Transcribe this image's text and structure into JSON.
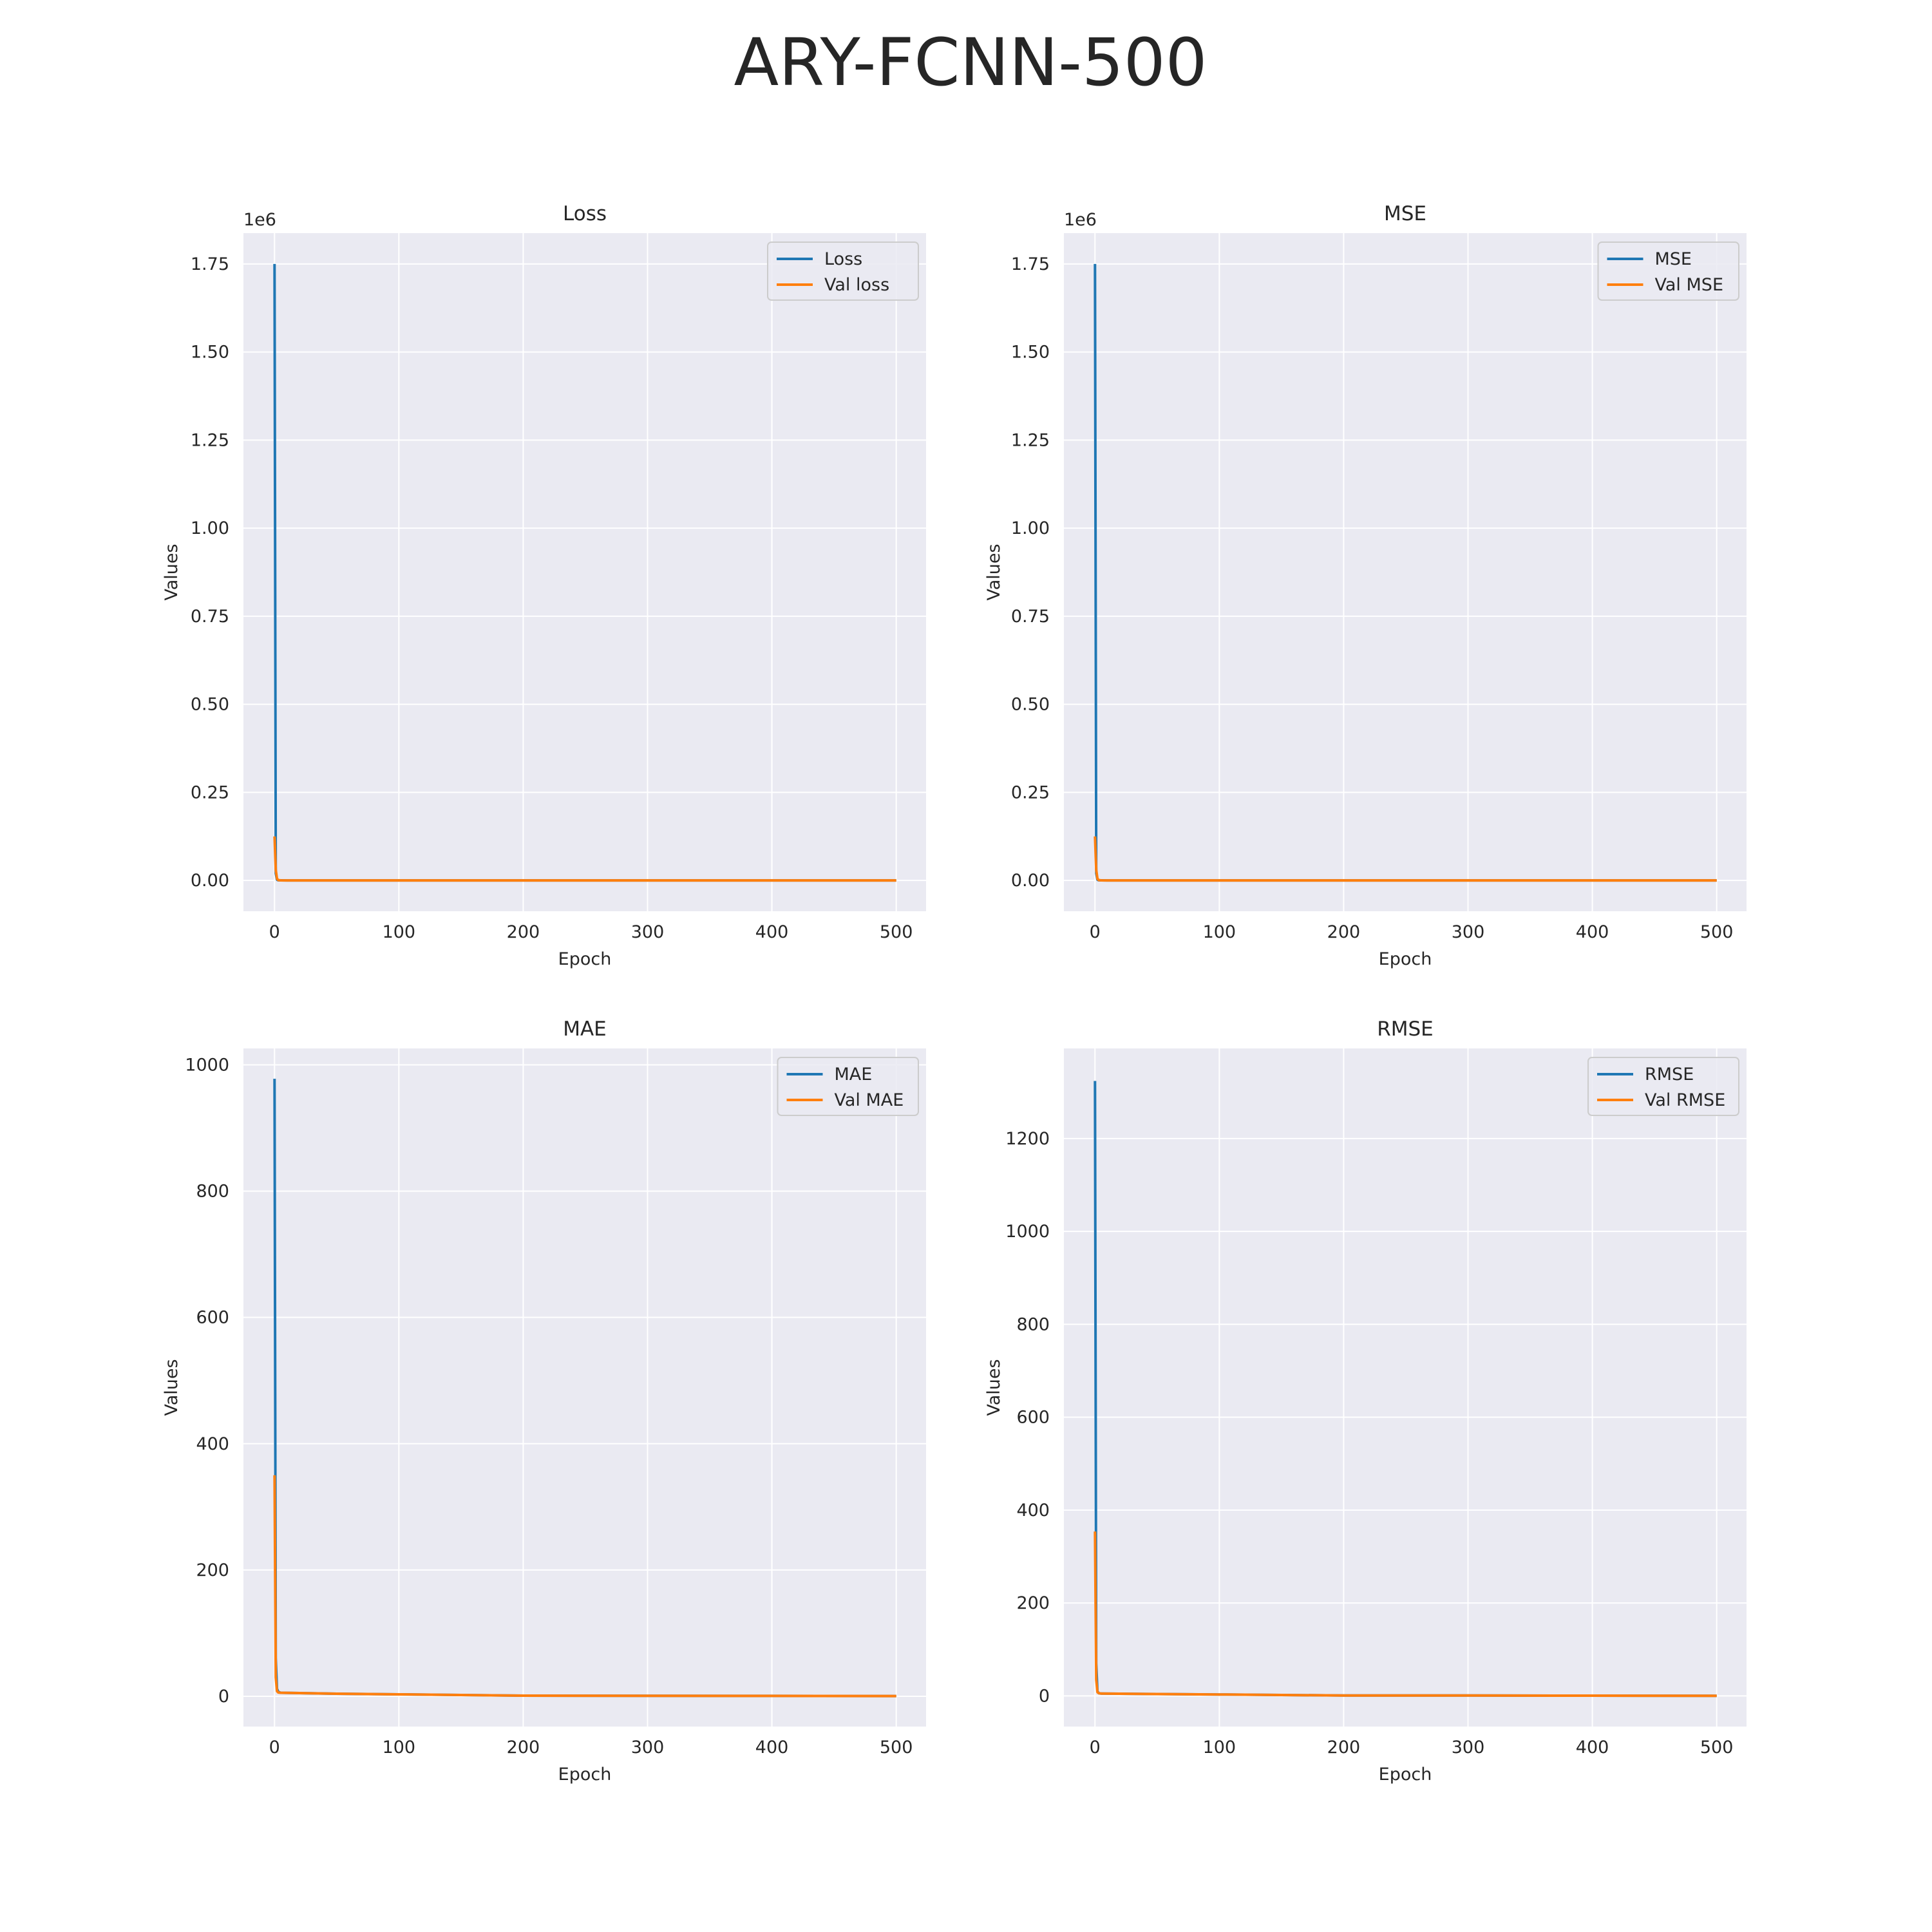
{
  "figure": {
    "suptitle": "ARY-FCNN-500"
  },
  "colors": {
    "axes_bg": "#EAEAF2",
    "grid": "#FFFFFF",
    "train": "#1F77B4",
    "val": "#FF7F0E",
    "text": "#262626"
  },
  "chart_data": [
    {
      "type": "line",
      "title": "Loss",
      "xlabel": "Epoch",
      "ylabel": "Values",
      "offset_text": "1e6",
      "xlim": [
        -25,
        524
      ],
      "ylim": [
        -0.0875,
        1.8375
      ],
      "xticks": [
        0,
        100,
        200,
        300,
        400,
        500
      ],
      "xtick_labels": [
        "0",
        "100",
        "200",
        "300",
        "400",
        "500"
      ],
      "yticks": [
        0,
        0.25,
        0.5,
        0.75,
        1.0,
        1.25,
        1.5,
        1.75
      ],
      "ytick_labels": [
        "0.00",
        "0.25",
        "0.50",
        "0.75",
        "1.00",
        "1.25",
        "1.50",
        "1.75"
      ],
      "grid": true,
      "legend_position": "top-right",
      "series": [
        {
          "name": "Loss",
          "color": "#1F77B4",
          "x": [
            0,
            1,
            2,
            3,
            5,
            10,
            100,
            500
          ],
          "y": [
            1.75,
            0.02,
            0.002,
            0.0005,
            0.0002,
            0.0001,
            0.0,
            0.0
          ]
        },
        {
          "name": "Val loss",
          "color": "#FF7F0E",
          "x": [
            0,
            1,
            2,
            3,
            5,
            10,
            100,
            500
          ],
          "y": [
            0.125,
            0.03,
            0.005,
            0.001,
            0.0003,
            0.0001,
            0.0,
            0.0
          ]
        }
      ]
    },
    {
      "type": "line",
      "title": "MSE",
      "xlabel": "Epoch",
      "ylabel": "Values",
      "offset_text": "1e6",
      "xlim": [
        -25,
        524
      ],
      "ylim": [
        -0.0875,
        1.8375
      ],
      "xticks": [
        0,
        100,
        200,
        300,
        400,
        500
      ],
      "xtick_labels": [
        "0",
        "100",
        "200",
        "300",
        "400",
        "500"
      ],
      "yticks": [
        0,
        0.25,
        0.5,
        0.75,
        1.0,
        1.25,
        1.5,
        1.75
      ],
      "ytick_labels": [
        "0.00",
        "0.25",
        "0.50",
        "0.75",
        "1.00",
        "1.25",
        "1.50",
        "1.75"
      ],
      "grid": true,
      "legend_position": "top-right",
      "series": [
        {
          "name": "MSE",
          "color": "#1F77B4",
          "x": [
            0,
            1,
            2,
            3,
            5,
            10,
            100,
            500
          ],
          "y": [
            1.75,
            0.02,
            0.002,
            0.0005,
            0.0002,
            0.0001,
            0.0,
            0.0
          ]
        },
        {
          "name": "Val MSE",
          "color": "#FF7F0E",
          "x": [
            0,
            1,
            2,
            3,
            5,
            10,
            100,
            500
          ],
          "y": [
            0.125,
            0.03,
            0.005,
            0.001,
            0.0003,
            0.0001,
            0.0,
            0.0
          ]
        }
      ]
    },
    {
      "type": "line",
      "title": "MAE",
      "xlabel": "Epoch",
      "ylabel": "Values",
      "offset_text": "",
      "xlim": [
        -25,
        524
      ],
      "ylim": [
        -48,
        1026
      ],
      "xticks": [
        0,
        100,
        200,
        300,
        400,
        500
      ],
      "xtick_labels": [
        "0",
        "100",
        "200",
        "300",
        "400",
        "500"
      ],
      "yticks": [
        0,
        200,
        400,
        600,
        800,
        1000
      ],
      "ytick_labels": [
        "0",
        "200",
        "400",
        "600",
        "800",
        "1000"
      ],
      "grid": true,
      "legend_position": "top-right",
      "series": [
        {
          "name": "MAE",
          "color": "#1F77B4",
          "x": [
            0,
            1,
            2,
            3,
            5,
            50,
            100,
            150,
            200,
            300,
            400,
            500
          ],
          "y": [
            978,
            60,
            12,
            7,
            5.5,
            4,
            3,
            2,
            1,
            0.8,
            0.5,
            0.3
          ]
        },
        {
          "name": "Val MAE",
          "color": "#FF7F0E",
          "x": [
            0,
            1,
            2,
            3,
            5,
            50,
            100,
            150,
            200,
            300,
            400,
            500
          ],
          "y": [
            350,
            30,
            8,
            6,
            5.5,
            4,
            3,
            2,
            1,
            0.8,
            0.5,
            0.3
          ]
        }
      ]
    },
    {
      "type": "line",
      "title": "RMSE",
      "xlabel": "Epoch",
      "ylabel": "Values",
      "offset_text": "",
      "xlim": [
        -25,
        524
      ],
      "ylim": [
        -66,
        1394
      ],
      "xticks": [
        0,
        100,
        200,
        300,
        400,
        500
      ],
      "xtick_labels": [
        "0",
        "100",
        "200",
        "300",
        "400",
        "500"
      ],
      "yticks": [
        0,
        200,
        400,
        600,
        800,
        1000,
        1200
      ],
      "ytick_labels": [
        "0",
        "200",
        "400",
        "600",
        "800",
        "1000",
        "1200"
      ],
      "grid": true,
      "legend_position": "top-right",
      "series": [
        {
          "name": "RMSE",
          "color": "#1F77B4",
          "x": [
            0,
            1,
            2,
            3,
            5,
            50,
            100,
            150,
            200,
            300,
            400,
            500
          ],
          "y": [
            1324,
            70,
            10,
            6,
            5,
            4,
            3,
            2,
            1,
            0.8,
            0.5,
            0.3
          ]
        },
        {
          "name": "Val RMSE",
          "color": "#FF7F0E",
          "x": [
            0,
            1,
            2,
            3,
            5,
            50,
            100,
            150,
            200,
            300,
            400,
            500
          ],
          "y": [
            354,
            35,
            8,
            6,
            5,
            4,
            3,
            2,
            1,
            0.8,
            0.5,
            0.3
          ]
        }
      ]
    }
  ]
}
